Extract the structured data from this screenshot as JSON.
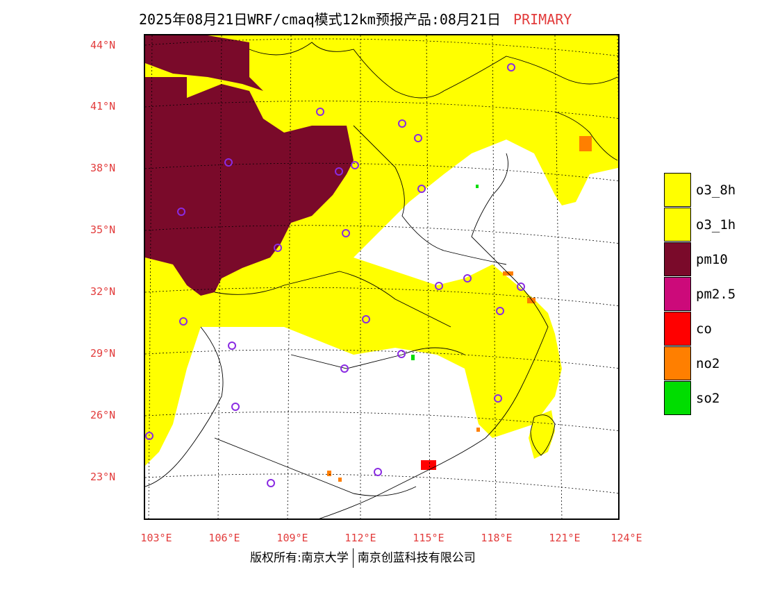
{
  "title": {
    "main": "2025年08月21日WRF/cmaq模式12km预报产品:08月21日",
    "tag": "PRIMARY"
  },
  "axes": {
    "lat_labels": [
      "44°N",
      "41°N",
      "38°N",
      "35°N",
      "32°N",
      "29°N",
      "26°N",
      "23°N"
    ],
    "lon_labels": [
      "103°E",
      "106°E",
      "109°E",
      "112°E",
      "115°E",
      "118°E",
      "121°E",
      "124°E"
    ]
  },
  "legend": {
    "items": [
      {
        "label": "o3_8h",
        "color": "#ffff00"
      },
      {
        "label": "o3_1h",
        "color": "#ffff00"
      },
      {
        "label": "pm10",
        "color": "#7a0a2a"
      },
      {
        "label": "pm2.5",
        "color": "#cc0a7a"
      },
      {
        "label": "co",
        "color": "#ff0000"
      },
      {
        "label": "no2",
        "color": "#ff7f00"
      },
      {
        "label": "so2",
        "color": "#00dd00"
      }
    ]
  },
  "footer": {
    "left": "版权所有:南京大学",
    "right": "南京创蓝科技有限公司"
  },
  "colors": {
    "o3": "#ffff00",
    "pm10": "#7a0a2a",
    "no2": "#ff7f00",
    "co": "#ff0000",
    "so2": "#00dd00",
    "city_marker": "#8a2be2",
    "axis_label": "#e23b3b"
  }
}
